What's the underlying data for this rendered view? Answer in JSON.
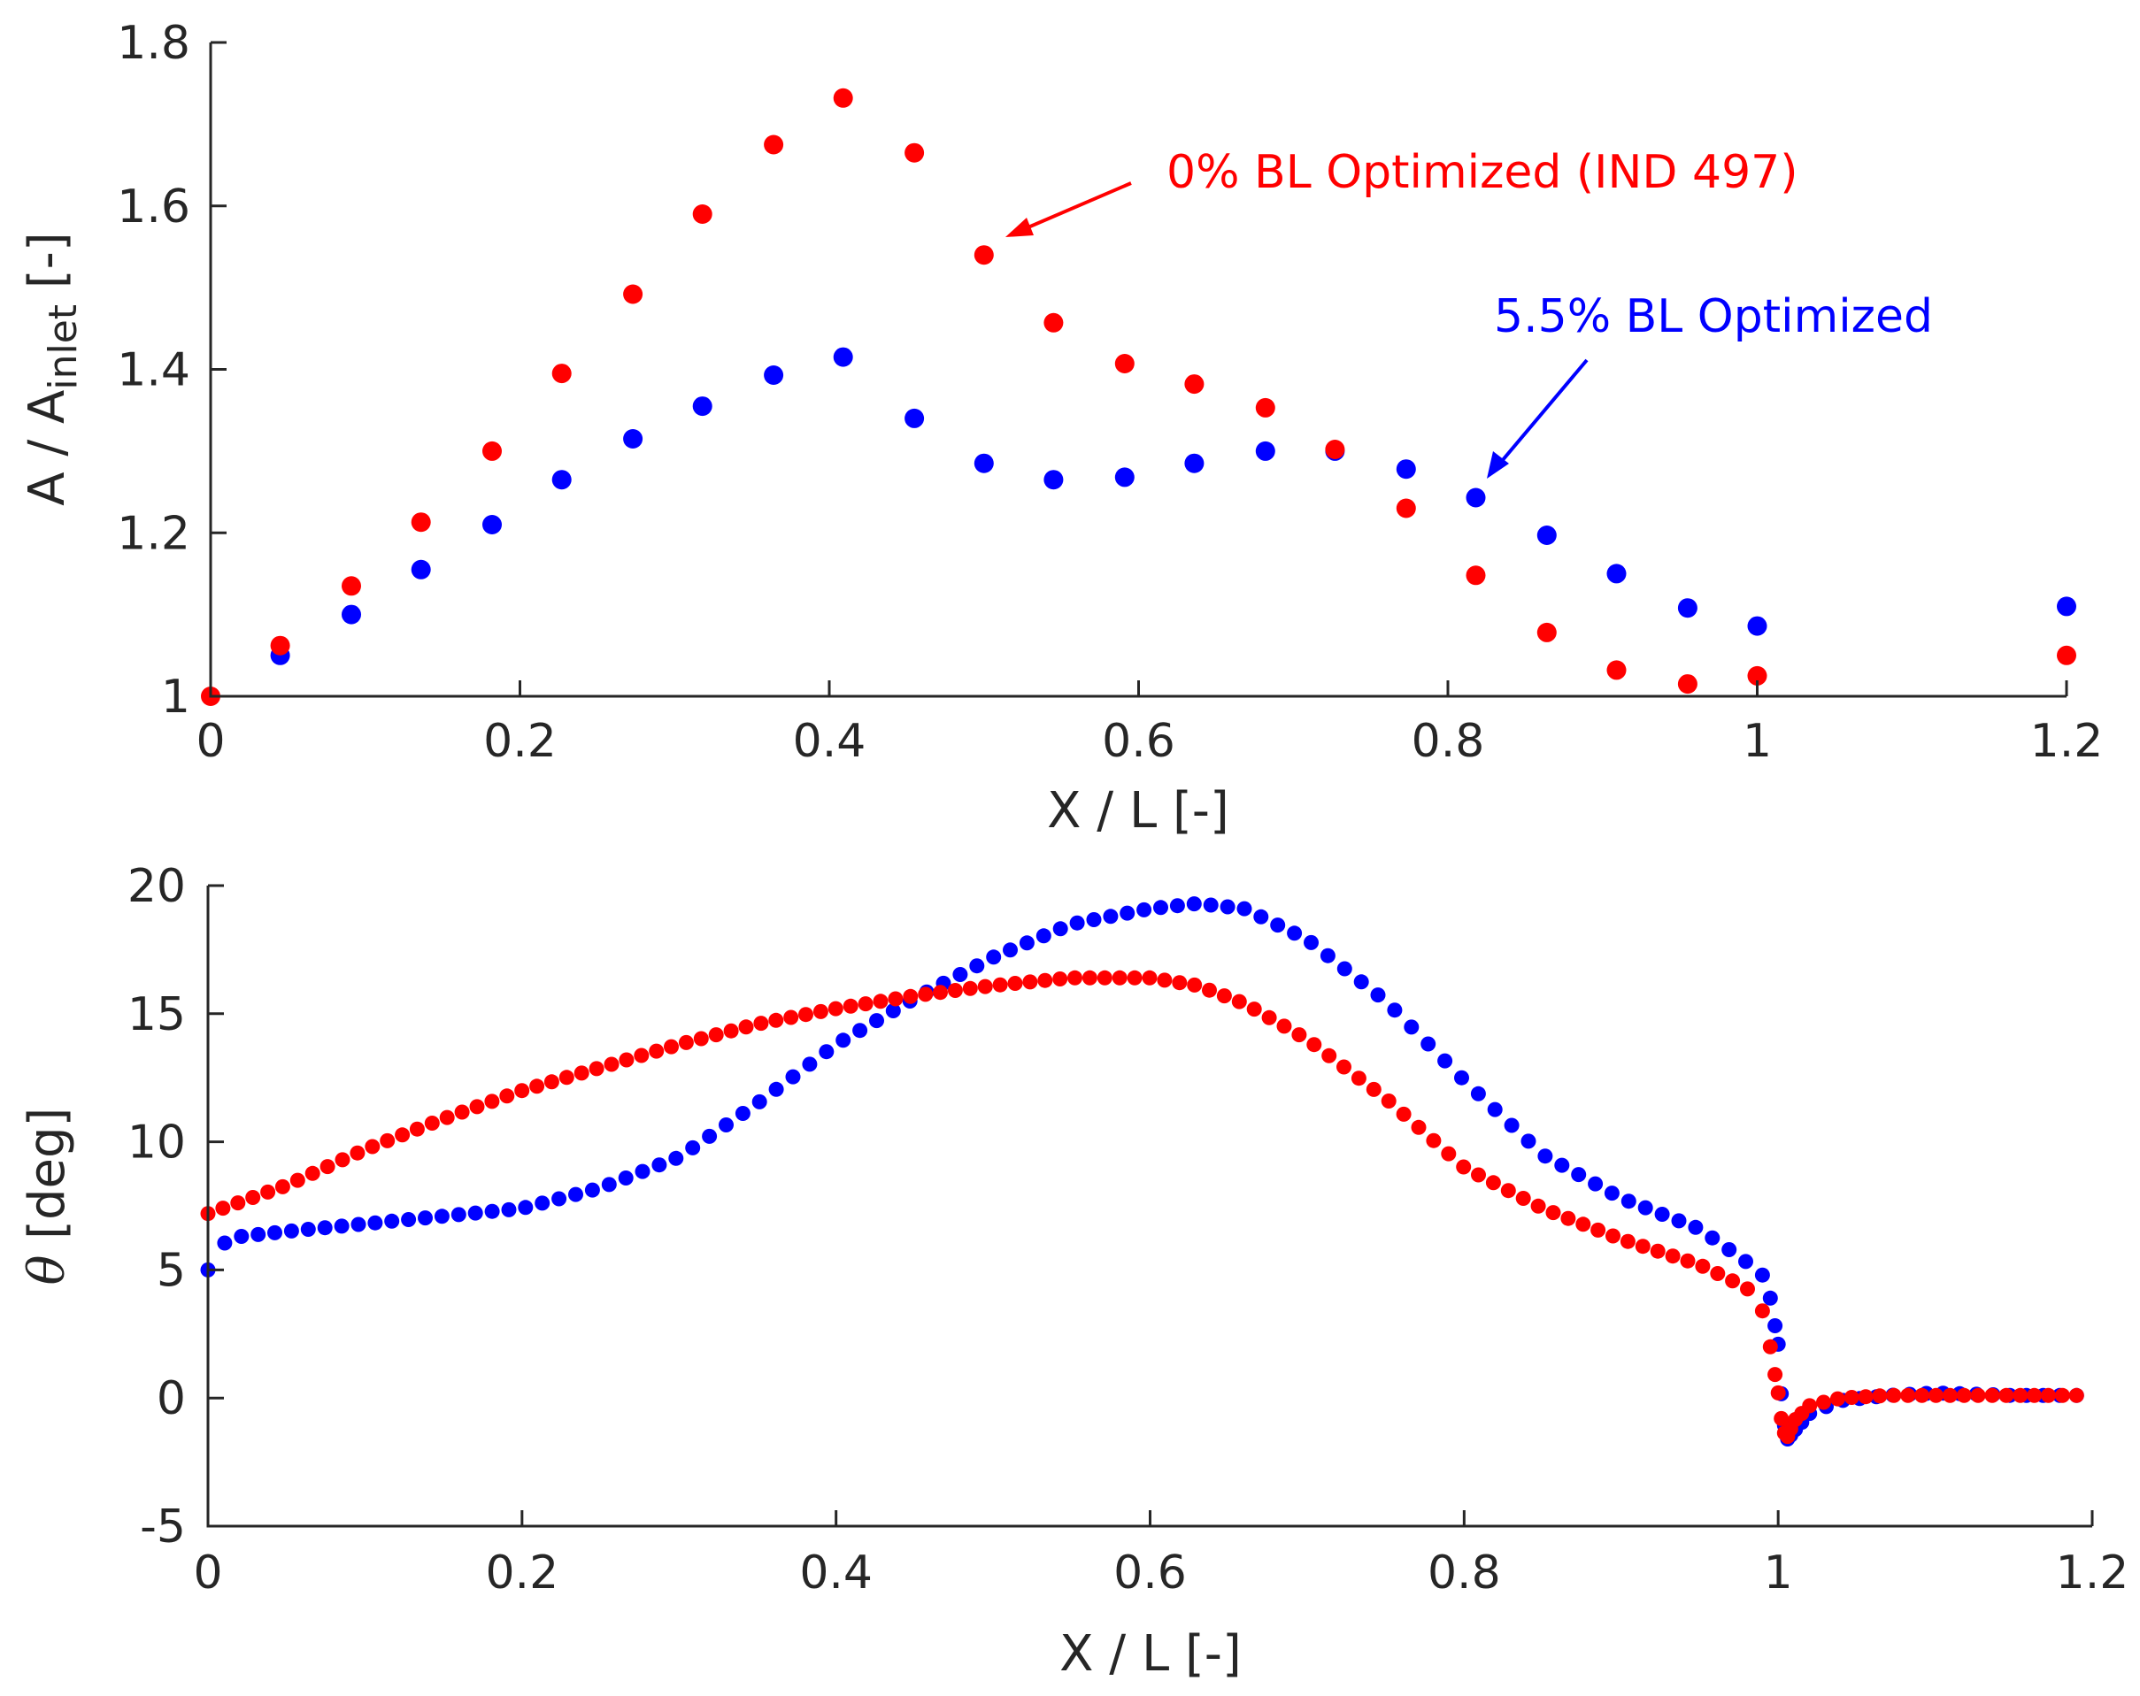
{
  "chart_data": [
    {
      "type": "scatter",
      "xlabel": "X / L [-]",
      "ylabel": {
        "main": "A / A",
        "subscript": "inlet",
        "suffix": " [-]"
      },
      "xlim": [
        0,
        1.2
      ],
      "ylim": [
        1,
        1.8
      ],
      "xticks": [
        "0",
        "0.2",
        "0.4",
        "0.6",
        "0.8",
        "1",
        "1.2"
      ],
      "yticks": [
        "1",
        "1.2",
        "1.4",
        "1.6",
        "1.8"
      ],
      "series": [
        {
          "name": "5.5% BL Optimized",
          "color": "#0000ff",
          "x": [
            0.045,
            0.091,
            0.136,
            0.182,
            0.227,
            0.273,
            0.318,
            0.364,
            0.409,
            0.455,
            0.5,
            0.545,
            0.591,
            0.636,
            0.682,
            0.727,
            0.773,
            0.818,
            0.864,
            0.909,
            0.955,
            1.0,
            1.2
          ],
          "y": [
            1.05,
            1.1,
            1.155,
            1.21,
            1.265,
            1.315,
            1.355,
            1.393,
            1.415,
            1.34,
            1.285,
            1.265,
            1.268,
            1.285,
            1.3,
            1.3,
            1.278,
            1.243,
            1.197,
            1.15,
            1.108,
            1.086,
            1.11
          ]
        },
        {
          "name": "0% BL Optimized (IND 497)",
          "color": "#ff0000",
          "x": [
            0.0,
            0.045,
            0.091,
            0.136,
            0.182,
            0.227,
            0.273,
            0.318,
            0.364,
            0.409,
            0.455,
            0.5,
            0.545,
            0.591,
            0.636,
            0.682,
            0.727,
            0.773,
            0.818,
            0.864,
            0.909,
            0.955,
            1.0,
            1.2
          ],
          "y": [
            1.0,
            1.062,
            1.135,
            1.213,
            1.3,
            1.395,
            1.492,
            1.59,
            1.675,
            1.732,
            1.665,
            1.54,
            1.457,
            1.407,
            1.382,
            1.353,
            1.302,
            1.23,
            1.148,
            1.078,
            1.032,
            1.015,
            1.025,
            1.05
          ]
        }
      ],
      "annotations": [
        {
          "text": "0% BL Optimized (IND 497)",
          "color": "#ff0000",
          "points_to": [
            0.51,
            1.555
          ]
        },
        {
          "text": "5.5% BL Optimized",
          "color": "#0000ff",
          "points_to": [
            0.822,
            1.258
          ]
        }
      ]
    },
    {
      "type": "scatter",
      "xlabel": "X / L [-]",
      "ylabel": {
        "symbol": "θ",
        "suffix": " [deg]"
      },
      "xlim": [
        0,
        1.2
      ],
      "ylim": [
        -5,
        20
      ],
      "xticks": [
        "0",
        "0.2",
        "0.4",
        "0.6",
        "0.8",
        "1",
        "1.2"
      ],
      "yticks": [
        "-5",
        "0",
        "5",
        "10",
        "15",
        "20"
      ],
      "series": [
        {
          "name": "5.5% BL Optimized",
          "color": "#0000ff",
          "knots_x": [
            0.0,
            0.005,
            0.02,
            0.05,
            0.1,
            0.15,
            0.2,
            0.25,
            0.3,
            0.35,
            0.4,
            0.45,
            0.5,
            0.55,
            0.6,
            0.63,
            0.66,
            0.7,
            0.75,
            0.8,
            0.85,
            0.9,
            0.95,
            0.98,
            0.99,
            0.995,
            1.0,
            1.003,
            1.006,
            1.01,
            1.02,
            1.04,
            1.07,
            1.1,
            1.15,
            1.19
          ],
          "knots_y": [
            5.0,
            5.9,
            6.3,
            6.5,
            6.8,
            7.1,
            7.4,
            8.2,
            9.4,
            11.5,
            13.8,
            15.6,
            17.2,
            18.5,
            19.1,
            19.3,
            19.1,
            17.9,
            15.5,
            12.4,
            9.5,
            7.8,
            6.6,
            5.3,
            4.8,
            3.9,
            2.1,
            -0.8,
            -1.6,
            -1.3,
            -0.6,
            -0.1,
            0.1,
            0.2,
            0.1,
            0.1
          ],
          "count": 120
        },
        {
          "name": "0% BL Optimized (IND 497)",
          "color": "#ff0000",
          "knots_x": [
            0.0,
            0.05,
            0.1,
            0.15,
            0.2,
            0.25,
            0.3,
            0.35,
            0.4,
            0.45,
            0.5,
            0.55,
            0.6,
            0.63,
            0.66,
            0.7,
            0.75,
            0.8,
            0.85,
            0.9,
            0.95,
            0.98,
            0.99,
            0.995,
            1.0,
            1.003,
            1.006,
            1.01,
            1.02,
            1.04,
            1.07,
            1.1,
            1.15,
            1.19
          ],
          "knots_y": [
            7.2,
            8.3,
            9.7,
            10.9,
            12.0,
            12.9,
            13.8,
            14.6,
            15.2,
            15.7,
            16.1,
            16.4,
            16.4,
            16.1,
            15.4,
            14.0,
            11.7,
            9.0,
            7.4,
            6.2,
            5.2,
            4.3,
            3.4,
            2.0,
            0.2,
            -1.3,
            -1.5,
            -0.9,
            -0.3,
            0.0,
            0.1,
            0.1,
            0.1,
            0.1
          ],
          "count": 134
        }
      ]
    }
  ]
}
